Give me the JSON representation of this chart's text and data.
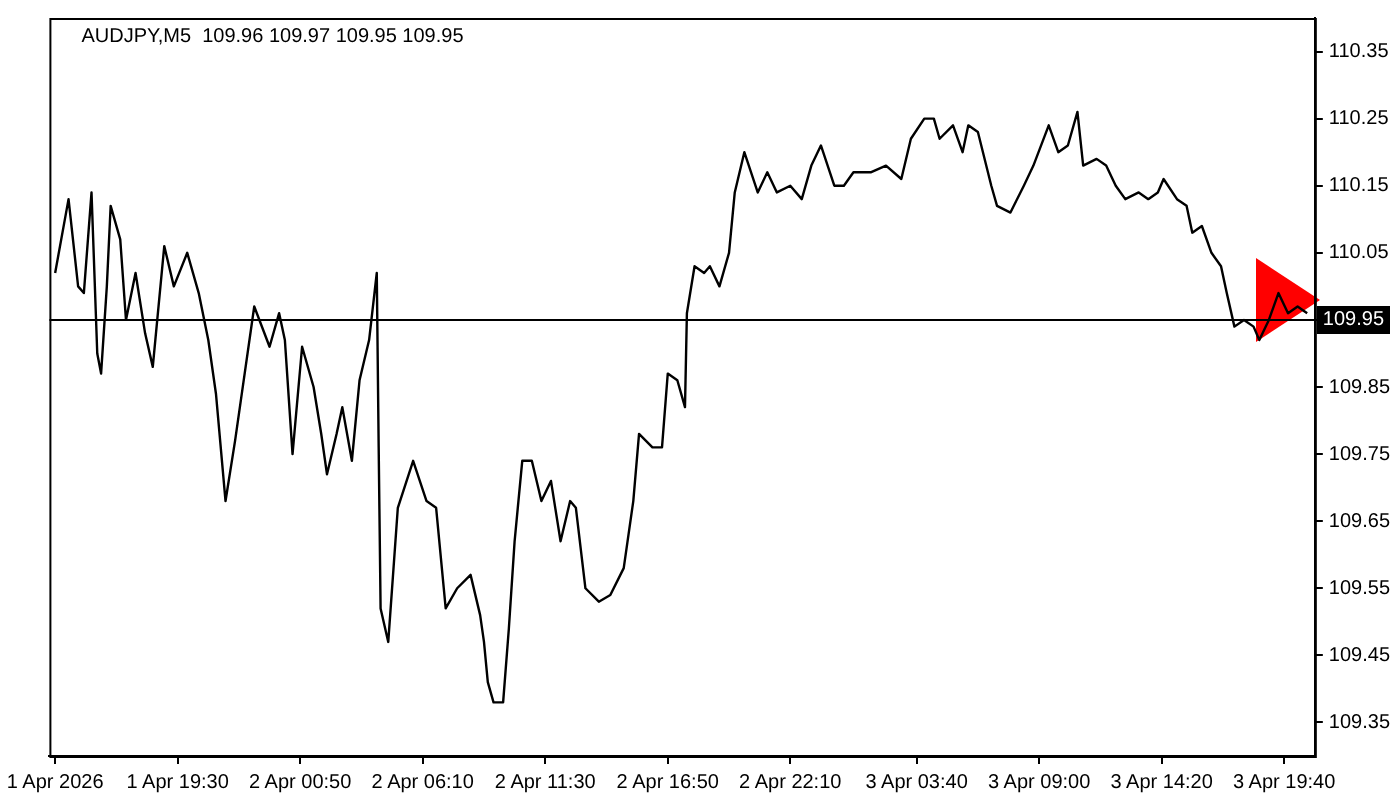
{
  "chart_data": {
    "type": "line",
    "title": "AUDJPY,M5  109.96 109.97 109.95 109.95",
    "x": [
      "2026-04-01T14:10",
      "2026-04-01T14:45",
      "2026-04-01T15:10",
      "2026-04-01T15:25",
      "2026-04-01T15:45",
      "2026-04-01T16:00",
      "2026-04-01T16:10",
      "2026-04-01T16:25",
      "2026-04-01T16:35",
      "2026-04-01T17:00",
      "2026-04-01T17:15",
      "2026-04-01T17:40",
      "2026-04-01T18:05",
      "2026-04-01T18:25",
      "2026-04-01T18:55",
      "2026-04-01T19:20",
      "2026-04-01T19:55",
      "2026-04-01T20:25",
      "2026-04-01T20:50",
      "2026-04-01T21:10",
      "2026-04-01T21:35",
      "2026-04-01T22:00",
      "2026-04-01T22:15",
      "2026-04-01T22:50",
      "2026-04-01T23:30",
      "2026-04-01T23:55",
      "2026-04-02T00:10",
      "2026-04-02T00:30",
      "2026-04-02T00:55",
      "2026-04-02T01:25",
      "2026-04-02T01:45",
      "2026-04-02T02:00",
      "2026-04-02T02:25",
      "2026-04-02T02:40",
      "2026-04-02T03:05",
      "2026-04-02T03:25",
      "2026-04-02T03:50",
      "2026-04-02T04:10",
      "2026-04-02T04:15",
      "2026-04-02T04:20",
      "2026-04-02T04:40",
      "2026-04-02T05:05",
      "2026-04-02T05:45",
      "2026-04-02T06:20",
      "2026-04-02T06:45",
      "2026-04-02T07:10",
      "2026-04-02T07:40",
      "2026-04-02T08:15",
      "2026-04-02T08:40",
      "2026-04-02T08:50",
      "2026-04-02T09:00",
      "2026-04-02T09:15",
      "2026-04-02T09:40",
      "2026-04-02T09:55",
      "2026-04-02T10:10",
      "2026-04-02T10:30",
      "2026-04-02T10:55",
      "2026-04-02T11:20",
      "2026-04-02T11:45",
      "2026-04-02T12:10",
      "2026-04-02T12:35",
      "2026-04-02T12:50",
      "2026-04-02T13:15",
      "2026-04-02T13:50",
      "2026-04-02T14:20",
      "2026-04-02T14:55",
      "2026-04-02T15:20",
      "2026-04-02T15:35",
      "2026-04-02T16:10",
      "2026-04-02T16:35",
      "2026-04-02T16:50",
      "2026-04-02T17:15",
      "2026-04-02T17:35",
      "2026-04-02T17:40",
      "2026-04-02T18:00",
      "2026-04-02T18:25",
      "2026-04-02T18:40",
      "2026-04-02T19:05",
      "2026-04-02T19:30",
      "2026-04-02T19:45",
      "2026-04-02T20:10",
      "2026-04-02T20:45",
      "2026-04-02T21:10",
      "2026-04-02T21:35",
      "2026-04-02T22:10",
      "2026-04-02T22:40",
      "2026-04-02T23:05",
      "2026-04-02T23:30",
      "2026-04-03T00:05",
      "2026-04-03T00:30",
      "2026-04-03T00:55",
      "2026-04-03T01:40",
      "2026-04-03T02:20",
      "2026-04-03T03:00",
      "2026-04-03T03:25",
      "2026-04-03T04:00",
      "2026-04-03T04:25",
      "2026-04-03T04:40",
      "2026-04-03T05:15",
      "2026-04-03T05:40",
      "2026-04-03T05:55",
      "2026-04-03T06:20",
      "2026-04-03T06:55",
      "2026-04-03T07:10",
      "2026-04-03T07:45",
      "2026-04-03T08:20",
      "2026-04-03T08:45",
      "2026-04-03T09:25",
      "2026-04-03T09:50",
      "2026-04-03T10:15",
      "2026-04-03T10:40",
      "2026-04-03T10:55",
      "2026-04-03T11:30",
      "2026-04-03T11:55",
      "2026-04-03T12:20",
      "2026-04-03T12:45",
      "2026-04-03T13:20",
      "2026-04-03T13:45",
      "2026-04-03T14:10",
      "2026-04-03T14:25",
      "2026-04-03T15:00",
      "2026-04-03T15:25",
      "2026-04-03T15:40",
      "2026-04-03T16:05",
      "2026-04-03T16:30",
      "2026-04-03T16:55",
      "2026-04-03T17:10",
      "2026-04-03T17:30",
      "2026-04-03T17:55",
      "2026-04-03T18:20",
      "2026-04-03T18:35",
      "2026-04-03T19:00",
      "2026-04-03T19:25",
      "2026-04-03T19:50",
      "2026-04-03T20:15",
      "2026-04-03T20:40"
    ],
    "series": [
      {
        "color": "#000000",
        "values": [
          110.02,
          110.13,
          110.0,
          109.99,
          110.14,
          109.9,
          109.87,
          110.0,
          110.12,
          110.07,
          109.95,
          110.02,
          109.93,
          109.88,
          110.06,
          110.0,
          110.05,
          109.99,
          109.92,
          109.84,
          109.68,
          109.77,
          109.83,
          109.97,
          109.91,
          109.96,
          109.92,
          109.75,
          109.91,
          109.85,
          109.78,
          109.72,
          109.78,
          109.82,
          109.74,
          109.86,
          109.92,
          110.02,
          109.76,
          109.52,
          109.47,
          109.67,
          109.74,
          109.68,
          109.67,
          109.52,
          109.55,
          109.57,
          109.51,
          109.47,
          109.41,
          109.38,
          109.38,
          109.49,
          109.62,
          109.74,
          109.74,
          109.68,
          109.71,
          109.62,
          109.68,
          109.67,
          109.55,
          109.53,
          109.54,
          109.58,
          109.68,
          109.78,
          109.76,
          109.76,
          109.87,
          109.86,
          109.82,
          109.96,
          110.03,
          110.02,
          110.03,
          110.0,
          110.05,
          110.14,
          110.2,
          110.14,
          110.17,
          110.14,
          110.15,
          110.13,
          110.18,
          110.21,
          110.15,
          110.15,
          110.17,
          110.17,
          110.18,
          110.16,
          110.22,
          110.25,
          110.25,
          110.22,
          110.24,
          110.2,
          110.24,
          110.23,
          110.15,
          110.12,
          110.11,
          110.15,
          110.18,
          110.24,
          110.2,
          110.21,
          110.26,
          110.18,
          110.19,
          110.18,
          110.15,
          110.13,
          110.14,
          110.13,
          110.14,
          110.16,
          110.13,
          110.12,
          110.08,
          110.09,
          110.05,
          110.03,
          109.99,
          109.94,
          109.95,
          109.94,
          109.92,
          109.95,
          109.99,
          109.96,
          109.97,
          109.96
        ]
      }
    ],
    "xlim": [
      "2026-04-01T13:55",
      "2026-04-03T21:00"
    ],
    "xticks": [
      {
        "value": "2026-04-01T14:10",
        "label": "1 Apr 2026"
      },
      {
        "value": "2026-04-01T19:30",
        "label": "1 Apr 19:30"
      },
      {
        "value": "2026-04-02T00:50",
        "label": "2 Apr 00:50"
      },
      {
        "value": "2026-04-02T06:10",
        "label": "2 Apr 06:10"
      },
      {
        "value": "2026-04-02T11:30",
        "label": "2 Apr 11:30"
      },
      {
        "value": "2026-04-02T16:50",
        "label": "2 Apr 16:50"
      },
      {
        "value": "2026-04-02T22:10",
        "label": "2 Apr 22:10"
      },
      {
        "value": "2026-04-03T03:40",
        "label": "3 Apr 03:40"
      },
      {
        "value": "2026-04-03T09:00",
        "label": "3 Apr 09:00"
      },
      {
        "value": "2026-04-03T14:20",
        "label": "3 Apr 14:20"
      },
      {
        "value": "2026-04-03T19:40",
        "label": "3 Apr 19:40"
      }
    ],
    "ylim": [
      109.3,
      110.4
    ],
    "yticks": [
      109.35,
      109.45,
      109.55,
      109.65,
      109.75,
      109.85,
      109.95,
      110.05,
      110.15,
      110.25,
      110.35
    ],
    "ref_lines": [
      {
        "axis": "y",
        "value": 109.95,
        "label": "109.95",
        "color": "#000000"
      }
    ],
    "grid": false,
    "legend": false,
    "marker": "none",
    "line_style": "solid"
  }
}
